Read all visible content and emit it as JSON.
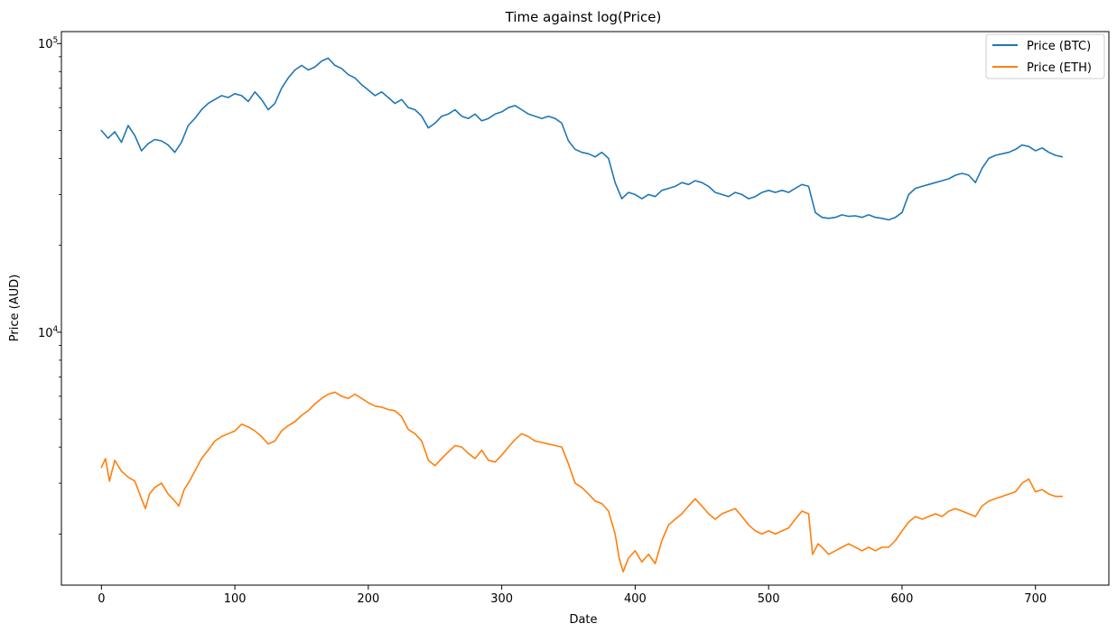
{
  "chart_data": {
    "type": "line",
    "title": "Time against log(Price)",
    "xlabel": "Date",
    "ylabel": "Price (AUD)",
    "yscale": "log",
    "xlim": [
      -30,
      755
    ],
    "ylim": [
      1330,
      110000
    ],
    "grid": false,
    "legend_position": "top-right",
    "x_ticks": [
      0,
      100,
      200,
      300,
      400,
      500,
      600,
      700
    ],
    "y_major_ticks": [
      {
        "value": 10000,
        "base": "10",
        "exp": "4"
      },
      {
        "value": 100000,
        "base": "10",
        "exp": "5"
      }
    ],
    "y_minor_ticks": [
      2000,
      3000,
      4000,
      5000,
      6000,
      7000,
      8000,
      9000,
      20000,
      30000,
      40000,
      50000,
      60000,
      70000,
      80000,
      90000
    ],
    "series": [
      {
        "name": "Price (BTC)",
        "color": "#1f77b4",
        "points": [
          [
            0,
            50000
          ],
          [
            5,
            47000
          ],
          [
            10,
            49500
          ],
          [
            15,
            45500
          ],
          [
            20,
            52000
          ],
          [
            25,
            48000
          ],
          [
            30,
            42500
          ],
          [
            35,
            45000
          ],
          [
            40,
            46500
          ],
          [
            45,
            46000
          ],
          [
            50,
            44500
          ],
          [
            55,
            42000
          ],
          [
            60,
            45500
          ],
          [
            65,
            52000
          ],
          [
            70,
            55000
          ],
          [
            75,
            59000
          ],
          [
            80,
            62000
          ],
          [
            85,
            64000
          ],
          [
            90,
            66000
          ],
          [
            95,
            65000
          ],
          [
            100,
            67000
          ],
          [
            105,
            66000
          ],
          [
            110,
            63000
          ],
          [
            115,
            68000
          ],
          [
            120,
            64000
          ],
          [
            125,
            59000
          ],
          [
            130,
            62000
          ],
          [
            135,
            70000
          ],
          [
            140,
            76000
          ],
          [
            145,
            81000
          ],
          [
            150,
            84000
          ],
          [
            155,
            81000
          ],
          [
            160,
            83000
          ],
          [
            165,
            87000
          ],
          [
            170,
            89000
          ],
          [
            175,
            84000
          ],
          [
            180,
            82000
          ],
          [
            185,
            78000
          ],
          [
            190,
            76000
          ],
          [
            195,
            72000
          ],
          [
            200,
            69000
          ],
          [
            205,
            66000
          ],
          [
            210,
            68000
          ],
          [
            215,
            65000
          ],
          [
            220,
            62000
          ],
          [
            225,
            64000
          ],
          [
            230,
            60000
          ],
          [
            235,
            59000
          ],
          [
            240,
            56000
          ],
          [
            245,
            51000
          ],
          [
            250,
            53000
          ],
          [
            255,
            56000
          ],
          [
            260,
            57000
          ],
          [
            265,
            59000
          ],
          [
            270,
            56000
          ],
          [
            275,
            55000
          ],
          [
            280,
            57000
          ],
          [
            285,
            54000
          ],
          [
            290,
            55000
          ],
          [
            295,
            57000
          ],
          [
            300,
            58000
          ],
          [
            305,
            60000
          ],
          [
            310,
            61000
          ],
          [
            315,
            59000
          ],
          [
            320,
            57000
          ],
          [
            325,
            56000
          ],
          [
            330,
            55000
          ],
          [
            335,
            56000
          ],
          [
            340,
            55000
          ],
          [
            345,
            53000
          ],
          [
            350,
            46000
          ],
          [
            355,
            43000
          ],
          [
            360,
            42000
          ],
          [
            365,
            41500
          ],
          [
            370,
            40500
          ],
          [
            375,
            42000
          ],
          [
            380,
            40000
          ],
          [
            385,
            33000
          ],
          [
            390,
            29000
          ],
          [
            395,
            30500
          ],
          [
            400,
            30000
          ],
          [
            405,
            29000
          ],
          [
            410,
            30000
          ],
          [
            415,
            29500
          ],
          [
            420,
            31000
          ],
          [
            425,
            31500
          ],
          [
            430,
            32000
          ],
          [
            435,
            33000
          ],
          [
            440,
            32500
          ],
          [
            445,
            33500
          ],
          [
            450,
            33000
          ],
          [
            455,
            32000
          ],
          [
            460,
            30500
          ],
          [
            465,
            30000
          ],
          [
            470,
            29500
          ],
          [
            475,
            30500
          ],
          [
            480,
            30000
          ],
          [
            485,
            29000
          ],
          [
            490,
            29500
          ],
          [
            495,
            30500
          ],
          [
            500,
            31000
          ],
          [
            505,
            30500
          ],
          [
            510,
            31000
          ],
          [
            515,
            30500
          ],
          [
            520,
            31500
          ],
          [
            525,
            32500
          ],
          [
            530,
            32000
          ],
          [
            535,
            26000
          ],
          [
            540,
            25000
          ],
          [
            545,
            24800
          ],
          [
            550,
            25000
          ],
          [
            555,
            25500
          ],
          [
            560,
            25200
          ],
          [
            565,
            25300
          ],
          [
            570,
            25000
          ],
          [
            575,
            25500
          ],
          [
            580,
            25000
          ],
          [
            585,
            24800
          ],
          [
            590,
            24500
          ],
          [
            595,
            25000
          ],
          [
            600,
            26000
          ],
          [
            605,
            30000
          ],
          [
            610,
            31500
          ],
          [
            615,
            32000
          ],
          [
            620,
            32500
          ],
          [
            625,
            33000
          ],
          [
            630,
            33500
          ],
          [
            635,
            34000
          ],
          [
            640,
            35000
          ],
          [
            645,
            35500
          ],
          [
            650,
            35000
          ],
          [
            655,
            33000
          ],
          [
            660,
            37000
          ],
          [
            665,
            40000
          ],
          [
            670,
            41000
          ],
          [
            675,
            41500
          ],
          [
            680,
            42000
          ],
          [
            685,
            43000
          ],
          [
            690,
            44500
          ],
          [
            695,
            44000
          ],
          [
            700,
            42500
          ],
          [
            705,
            43500
          ],
          [
            710,
            42000
          ],
          [
            715,
            41000
          ],
          [
            720,
            40500
          ]
        ]
      },
      {
        "name": "Price (ETH)",
        "color": "#ff7f0e",
        "points": [
          [
            0,
            3400
          ],
          [
            3,
            3650
          ],
          [
            6,
            3050
          ],
          [
            10,
            3600
          ],
          [
            15,
            3300
          ],
          [
            20,
            3150
          ],
          [
            25,
            3050
          ],
          [
            30,
            2650
          ],
          [
            33,
            2450
          ],
          [
            36,
            2750
          ],
          [
            40,
            2900
          ],
          [
            45,
            3000
          ],
          [
            50,
            2750
          ],
          [
            55,
            2600
          ],
          [
            58,
            2500
          ],
          [
            62,
            2850
          ],
          [
            66,
            3050
          ],
          [
            70,
            3300
          ],
          [
            75,
            3650
          ],
          [
            80,
            3900
          ],
          [
            85,
            4200
          ],
          [
            90,
            4350
          ],
          [
            95,
            4450
          ],
          [
            100,
            4550
          ],
          [
            105,
            4800
          ],
          [
            110,
            4700
          ],
          [
            115,
            4550
          ],
          [
            120,
            4350
          ],
          [
            125,
            4100
          ],
          [
            130,
            4200
          ],
          [
            135,
            4550
          ],
          [
            140,
            4750
          ],
          [
            145,
            4900
          ],
          [
            150,
            5150
          ],
          [
            155,
            5350
          ],
          [
            160,
            5650
          ],
          [
            165,
            5900
          ],
          [
            170,
            6100
          ],
          [
            175,
            6200
          ],
          [
            180,
            6000
          ],
          [
            185,
            5900
          ],
          [
            190,
            6100
          ],
          [
            195,
            5900
          ],
          [
            200,
            5700
          ],
          [
            205,
            5550
          ],
          [
            210,
            5500
          ],
          [
            215,
            5400
          ],
          [
            220,
            5350
          ],
          [
            225,
            5100
          ],
          [
            230,
            4600
          ],
          [
            235,
            4450
          ],
          [
            240,
            4200
          ],
          [
            245,
            3600
          ],
          [
            250,
            3450
          ],
          [
            255,
            3650
          ],
          [
            260,
            3850
          ],
          [
            265,
            4050
          ],
          [
            270,
            4000
          ],
          [
            275,
            3800
          ],
          [
            280,
            3650
          ],
          [
            285,
            3900
          ],
          [
            290,
            3600
          ],
          [
            295,
            3550
          ],
          [
            300,
            3750
          ],
          [
            305,
            4000
          ],
          [
            310,
            4250
          ],
          [
            315,
            4450
          ],
          [
            320,
            4350
          ],
          [
            325,
            4200
          ],
          [
            330,
            4150
          ],
          [
            335,
            4100
          ],
          [
            340,
            4050
          ],
          [
            345,
            4000
          ],
          [
            350,
            3500
          ],
          [
            355,
            3000
          ],
          [
            360,
            2900
          ],
          [
            365,
            2750
          ],
          [
            370,
            2600
          ],
          [
            375,
            2550
          ],
          [
            380,
            2400
          ],
          [
            385,
            2000
          ],
          [
            388,
            1650
          ],
          [
            391,
            1480
          ],
          [
            395,
            1650
          ],
          [
            400,
            1750
          ],
          [
            405,
            1600
          ],
          [
            410,
            1700
          ],
          [
            415,
            1580
          ],
          [
            420,
            1900
          ],
          [
            425,
            2150
          ],
          [
            430,
            2250
          ],
          [
            435,
            2350
          ],
          [
            440,
            2500
          ],
          [
            445,
            2650
          ],
          [
            450,
            2500
          ],
          [
            455,
            2350
          ],
          [
            460,
            2250
          ],
          [
            465,
            2350
          ],
          [
            470,
            2400
          ],
          [
            475,
            2450
          ],
          [
            480,
            2300
          ],
          [
            485,
            2150
          ],
          [
            490,
            2050
          ],
          [
            495,
            2000
          ],
          [
            500,
            2050
          ],
          [
            505,
            2000
          ],
          [
            510,
            2050
          ],
          [
            515,
            2100
          ],
          [
            520,
            2250
          ],
          [
            525,
            2400
          ],
          [
            530,
            2350
          ],
          [
            533,
            1700
          ],
          [
            537,
            1850
          ],
          [
            540,
            1800
          ],
          [
            545,
            1700
          ],
          [
            550,
            1750
          ],
          [
            555,
            1800
          ],
          [
            560,
            1850
          ],
          [
            565,
            1800
          ],
          [
            570,
            1750
          ],
          [
            575,
            1800
          ],
          [
            580,
            1750
          ],
          [
            585,
            1800
          ],
          [
            590,
            1800
          ],
          [
            595,
            1900
          ],
          [
            600,
            2050
          ],
          [
            605,
            2200
          ],
          [
            610,
            2300
          ],
          [
            615,
            2250
          ],
          [
            620,
            2300
          ],
          [
            625,
            2350
          ],
          [
            630,
            2300
          ],
          [
            635,
            2400
          ],
          [
            640,
            2450
          ],
          [
            645,
            2400
          ],
          [
            650,
            2350
          ],
          [
            655,
            2300
          ],
          [
            660,
            2500
          ],
          [
            665,
            2600
          ],
          [
            670,
            2650
          ],
          [
            675,
            2700
          ],
          [
            680,
            2750
          ],
          [
            685,
            2800
          ],
          [
            690,
            3000
          ],
          [
            695,
            3100
          ],
          [
            700,
            2800
          ],
          [
            705,
            2850
          ],
          [
            710,
            2750
          ],
          [
            715,
            2700
          ],
          [
            720,
            2700
          ]
        ]
      }
    ]
  }
}
